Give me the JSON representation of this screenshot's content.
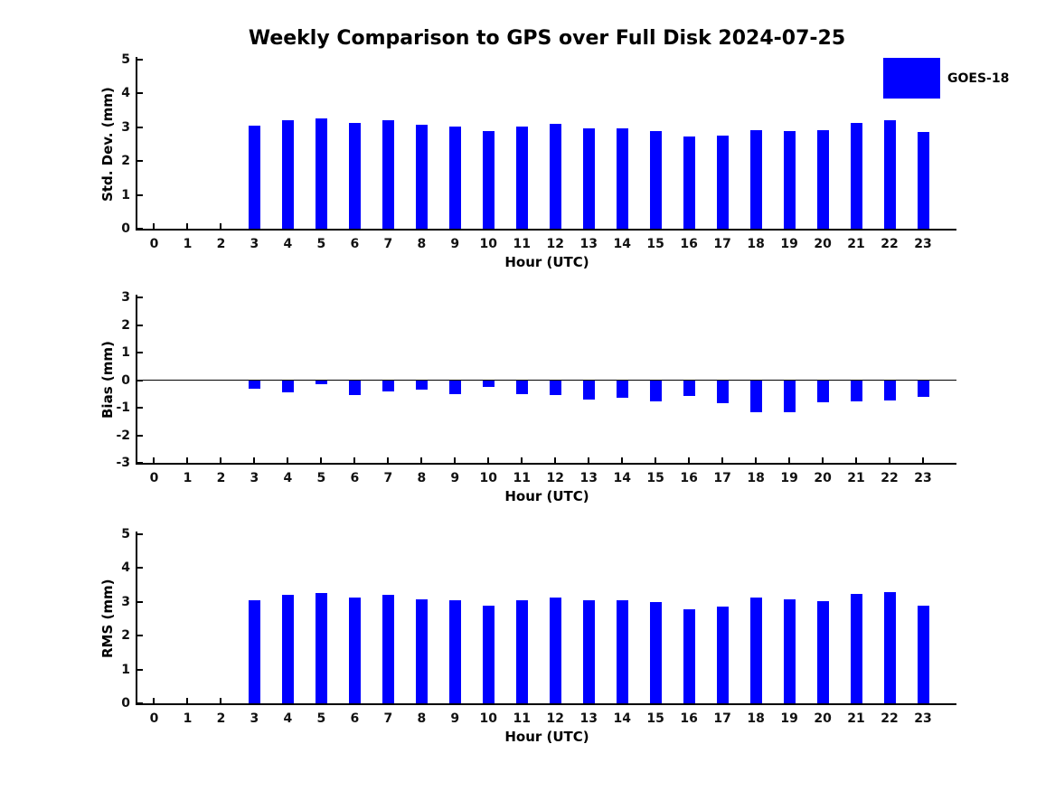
{
  "title": "Weekly Comparison to GPS over Full Disk 2024-07-25",
  "legend": {
    "label": "GOES-18",
    "color": "#0000ff",
    "position": "upper right"
  },
  "chart_data": [
    {
      "type": "bar",
      "id": "std-dev",
      "title": "",
      "ylabel": "Std. Dev. (mm)",
      "xlabel": "Hour (UTC)",
      "ylim": [
        0,
        5
      ],
      "yticks": [
        5,
        4,
        3,
        2,
        1,
        0
      ],
      "grid": false,
      "zero_line": false,
      "categories": [
        0,
        1,
        2,
        3,
        4,
        5,
        6,
        7,
        8,
        9,
        10,
        11,
        12,
        13,
        14,
        15,
        16,
        17,
        18,
        19,
        20,
        21,
        22,
        23
      ],
      "series": [
        {
          "name": "GOES-18",
          "color": "#0000ff",
          "values": [
            null,
            null,
            null,
            3.04,
            3.2,
            3.25,
            3.12,
            3.2,
            3.07,
            3.01,
            2.88,
            3.01,
            3.1,
            2.96,
            2.96,
            2.89,
            2.72,
            2.76,
            2.91,
            2.88,
            2.91,
            3.14,
            3.21,
            2.85
          ]
        }
      ]
    },
    {
      "type": "bar",
      "id": "bias",
      "title": "",
      "ylabel": "Bias (mm)",
      "xlabel": "Hour (UTC)",
      "ylim": [
        -3,
        3
      ],
      "yticks": [
        3,
        2,
        1,
        0,
        -1,
        -2,
        -3
      ],
      "grid": false,
      "zero_line": true,
      "categories": [
        0,
        1,
        2,
        3,
        4,
        5,
        6,
        7,
        8,
        9,
        10,
        11,
        12,
        13,
        14,
        15,
        16,
        17,
        18,
        19,
        20,
        21,
        22,
        23
      ],
      "series": [
        {
          "name": "GOES-18",
          "color": "#0000ff",
          "values": [
            null,
            null,
            null,
            -0.3,
            -0.45,
            -0.15,
            -0.55,
            -0.42,
            -0.33,
            -0.5,
            -0.25,
            -0.5,
            -0.55,
            -0.7,
            -0.65,
            -0.78,
            -0.58,
            -0.82,
            -1.18,
            -1.16,
            -0.8,
            -0.76,
            -0.75,
            -0.6
          ]
        }
      ]
    },
    {
      "type": "bar",
      "id": "rms",
      "title": "",
      "ylabel": "RMS (mm)",
      "xlabel": "Hour (UTC)",
      "ylim": [
        0,
        5
      ],
      "yticks": [
        5,
        4,
        3,
        2,
        1,
        0
      ],
      "grid": false,
      "zero_line": false,
      "categories": [
        0,
        1,
        2,
        3,
        4,
        5,
        6,
        7,
        8,
        9,
        10,
        11,
        12,
        13,
        14,
        15,
        16,
        17,
        18,
        19,
        20,
        21,
        22,
        23
      ],
      "series": [
        {
          "name": "GOES-18",
          "color": "#0000ff",
          "values": [
            null,
            null,
            null,
            3.05,
            3.22,
            3.26,
            3.14,
            3.22,
            3.08,
            3.05,
            2.89,
            3.05,
            3.14,
            3.04,
            3.05,
            2.99,
            2.79,
            2.87,
            3.12,
            3.07,
            3.02,
            3.23,
            3.29,
            2.9
          ]
        }
      ]
    }
  ]
}
